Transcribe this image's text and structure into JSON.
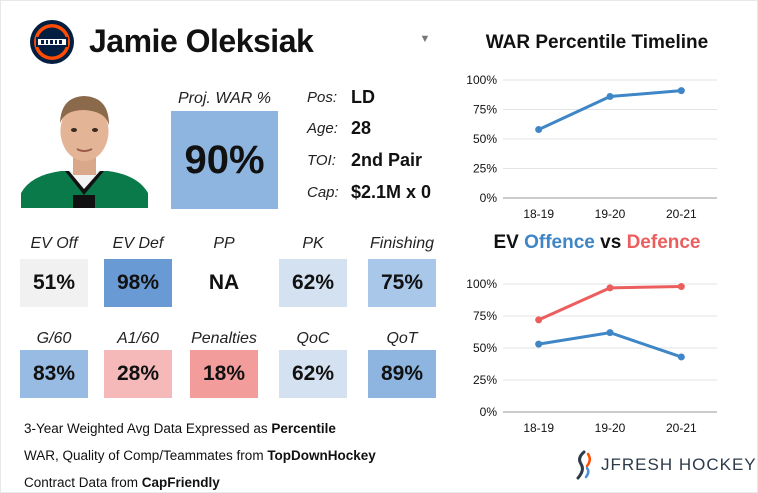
{
  "player": {
    "name": "Jamie Oleksiak",
    "dropdown_icon": "chevron-down-icon"
  },
  "proj_war": {
    "label": "Proj. WAR %",
    "value": "90%"
  },
  "info": [
    {
      "label": "Pos:",
      "value": "LD"
    },
    {
      "label": "Age:",
      "value": "28"
    },
    {
      "label": "TOI:",
      "value": "2nd Pair"
    },
    {
      "label": "Cap:",
      "value": "$2.1M x 0"
    }
  ],
  "stats_row1": [
    {
      "label": "EV Off",
      "value": "51%",
      "color": "#f1f1f1"
    },
    {
      "label": "EV Def",
      "value": "98%",
      "color": "#6a9ad4"
    },
    {
      "label": "PP",
      "value": "NA",
      "color": "#ffffff"
    },
    {
      "label": "PK",
      "value": "62%",
      "color": "#d4e1f0"
    },
    {
      "label": "Finishing",
      "value": "75%",
      "color": "#a9c7e8"
    }
  ],
  "stats_row2": [
    {
      "label": "G/60",
      "value": "83%",
      "color": "#97bbe3"
    },
    {
      "label": "A1/60",
      "value": "28%",
      "color": "#f5b9b9"
    },
    {
      "label": "Penalties",
      "value": "18%",
      "color": "#f29c9c"
    },
    {
      "label": "QoC",
      "value": "62%",
      "color": "#d4e1f0"
    },
    {
      "label": "QoT",
      "value": "89%",
      "color": "#8db5e0"
    }
  ],
  "footer": {
    "line1_prefix": "3-Year Weighted Avg Data Expressed as ",
    "line1_bold": "Percentile",
    "line2_prefix": "WAR, Quality of Comp/Teammates from ",
    "line2_bold": "TopDownHockey",
    "line3_prefix": "Contract Data from ",
    "line3_bold": "CapFriendly"
  },
  "brand": {
    "name": "JFRESH HOCKEY"
  },
  "colors": {
    "offence": "#3f86c6",
    "defence": "#ec5e5e"
  },
  "chart_data": [
    {
      "type": "line",
      "title": "WAR Percentile Timeline",
      "categories": [
        "18-19",
        "19-20",
        "20-21"
      ],
      "series": [
        {
          "name": "WAR",
          "values": [
            58,
            86,
            91
          ],
          "color": "#3f86c6"
        }
      ],
      "yticks": [
        "0%",
        "25%",
        "50%",
        "75%",
        "100%"
      ],
      "ylim": [
        0,
        100
      ]
    },
    {
      "type": "line",
      "title_parts": [
        "EV ",
        "Offence",
        " vs ",
        "Defence"
      ],
      "categories": [
        "18-19",
        "19-20",
        "20-21"
      ],
      "series": [
        {
          "name": "Offence",
          "values": [
            53,
            62,
            43
          ],
          "color": "#3f86c6"
        },
        {
          "name": "Defence",
          "values": [
            72,
            97,
            98
          ],
          "color": "#ec5e5e"
        }
      ],
      "yticks": [
        "0%",
        "25%",
        "50%",
        "75%",
        "100%"
      ],
      "ylim": [
        0,
        100
      ]
    }
  ]
}
